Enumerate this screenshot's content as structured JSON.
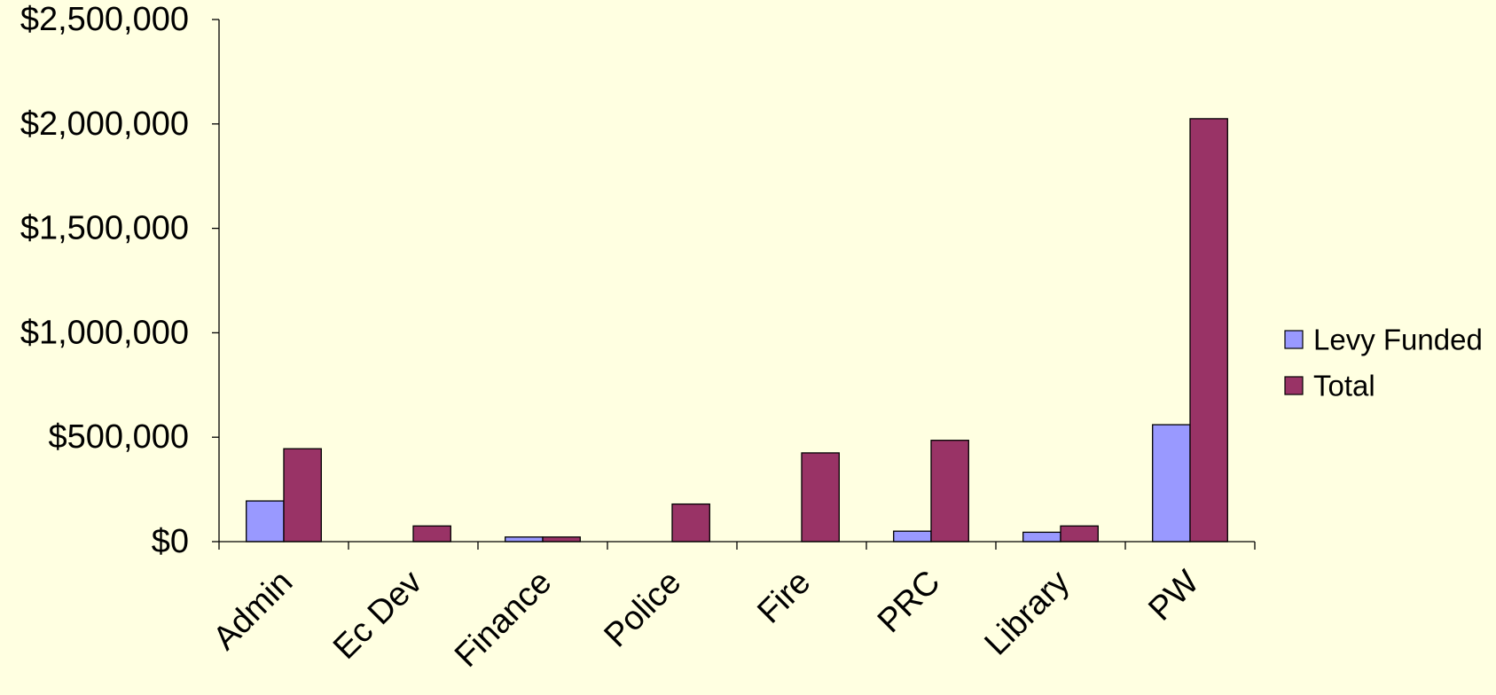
{
  "chart_data": {
    "type": "bar",
    "categories": [
      "Admin",
      "Ec Dev",
      "Finance",
      "Police",
      "Fire",
      "PRC",
      "Library",
      "PW"
    ],
    "series": [
      {
        "name": "Levy Funded",
        "color": "#9999FF",
        "values": [
          195000,
          0,
          22000,
          0,
          0,
          50000,
          45000,
          560000
        ]
      },
      {
        "name": "Total",
        "color": "#993366",
        "values": [
          445000,
          75000,
          22000,
          180000,
          425000,
          485000,
          75000,
          2025000
        ]
      }
    ],
    "ylim": [
      0,
      2500000
    ],
    "yticks": [
      0,
      500000,
      1000000,
      1500000,
      2000000,
      2500000
    ],
    "ytick_labels": [
      "$0",
      "$500,000",
      "$1,000,000",
      "$1,500,000",
      "$2,000,000",
      "$2,500,000"
    ],
    "grid": false,
    "legend_position": "right",
    "background_color": "#FFFFE1"
  }
}
